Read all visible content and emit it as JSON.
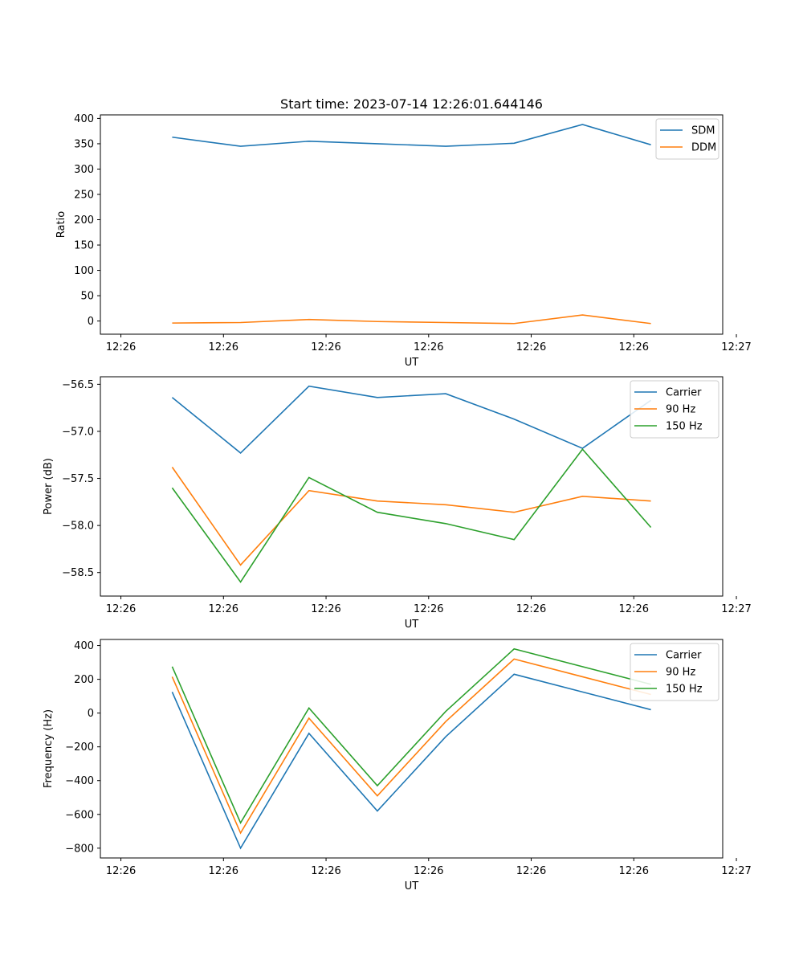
{
  "chart_data": [
    {
      "type": "line",
      "title": "Start time: 2023-07-14 12:26:01.644146",
      "xlabel": "UT",
      "ylabel": "Ratio",
      "xlim": [
        -0.3,
        8.8
      ],
      "ylim": [
        -26,
        407
      ],
      "x": [
        0.75,
        1.75,
        2.75,
        3.75,
        4.75,
        5.75,
        6.75,
        7.75
      ],
      "x_ticks": [
        {
          "value": 0,
          "label": "12:26"
        },
        {
          "value": 1.5,
          "label": "12:26"
        },
        {
          "value": 3,
          "label": "12:26"
        },
        {
          "value": 4.5,
          "label": "12:26"
        },
        {
          "value": 6,
          "label": "12:26"
        },
        {
          "value": 7.5,
          "label": "12:26"
        },
        {
          "value": 9,
          "label": "12:27"
        }
      ],
      "y_ticks": [
        0,
        50,
        100,
        150,
        200,
        250,
        300,
        350,
        400
      ],
      "legend_position": "top-right",
      "series": [
        {
          "name": "SDM",
          "color": "#1f77b4",
          "values": [
            363,
            345,
            355,
            350,
            345,
            351,
            388,
            348
          ]
        },
        {
          "name": "DDM",
          "color": "#ff7f0e",
          "values": [
            -4,
            -3,
            3,
            -1,
            -3,
            -5,
            12,
            -5
          ]
        }
      ]
    },
    {
      "type": "line",
      "title": "",
      "xlabel": "UT",
      "ylabel": "Power (dB)",
      "xlim": [
        -0.3,
        8.8
      ],
      "ylim": [
        -58.75,
        -56.42
      ],
      "x": [
        0.75,
        1.75,
        2.75,
        3.75,
        4.75,
        5.75,
        6.75,
        7.75
      ],
      "x_ticks": [
        {
          "value": 0,
          "label": "12:26"
        },
        {
          "value": 1.5,
          "label": "12:26"
        },
        {
          "value": 3,
          "label": "12:26"
        },
        {
          "value": 4.5,
          "label": "12:26"
        },
        {
          "value": 6,
          "label": "12:26"
        },
        {
          "value": 7.5,
          "label": "12:26"
        },
        {
          "value": 9,
          "label": "12:27"
        }
      ],
      "y_ticks": [
        -58.5,
        -58.0,
        -57.5,
        -57.0,
        -56.5
      ],
      "legend_position": "top-right",
      "series": [
        {
          "name": "Carrier",
          "color": "#1f77b4",
          "values": [
            -56.64,
            -57.23,
            -56.52,
            -56.64,
            -56.6,
            -56.87,
            -57.18,
            -56.67
          ]
        },
        {
          "name": "90 Hz",
          "color": "#ff7f0e",
          "values": [
            -57.38,
            -58.42,
            -57.63,
            -57.74,
            -57.78,
            -57.86,
            -57.69,
            -57.74
          ]
        },
        {
          "name": "150 Hz",
          "color": "#2ca02c",
          "values": [
            -57.6,
            -58.6,
            -57.49,
            -57.86,
            -57.98,
            -58.15,
            -57.19,
            -58.02
          ]
        }
      ]
    },
    {
      "type": "line",
      "title": "",
      "xlabel": "UT",
      "ylabel": "Frequency (Hz)",
      "xlim": [
        -0.3,
        8.8
      ],
      "ylim": [
        -858,
        436
      ],
      "x": [
        0.75,
        1.75,
        2.75,
        3.75,
        4.75,
        5.75,
        6.75,
        7.75
      ],
      "x_ticks": [
        {
          "value": 0,
          "label": "12:26"
        },
        {
          "value": 1.5,
          "label": "12:26"
        },
        {
          "value": 3,
          "label": "12:26"
        },
        {
          "value": 4.5,
          "label": "12:26"
        },
        {
          "value": 6,
          "label": "12:26"
        },
        {
          "value": 7.5,
          "label": "12:26"
        },
        {
          "value": 9,
          "label": "12:27"
        }
      ],
      "y_ticks": [
        -800,
        -600,
        -400,
        -200,
        0,
        200,
        400
      ],
      "legend_position": "top-right",
      "series": [
        {
          "name": "Carrier",
          "color": "#1f77b4",
          "values": [
            125,
            -800,
            -120,
            -580,
            -140,
            230,
            125,
            20
          ]
        },
        {
          "name": "90 Hz",
          "color": "#ff7f0e",
          "values": [
            215,
            -710,
            -30,
            -490,
            -50,
            320,
            215,
            110
          ]
        },
        {
          "name": "150 Hz",
          "color": "#2ca02c",
          "values": [
            275,
            -650,
            30,
            -430,
            10,
            380,
            275,
            170
          ]
        }
      ]
    }
  ]
}
